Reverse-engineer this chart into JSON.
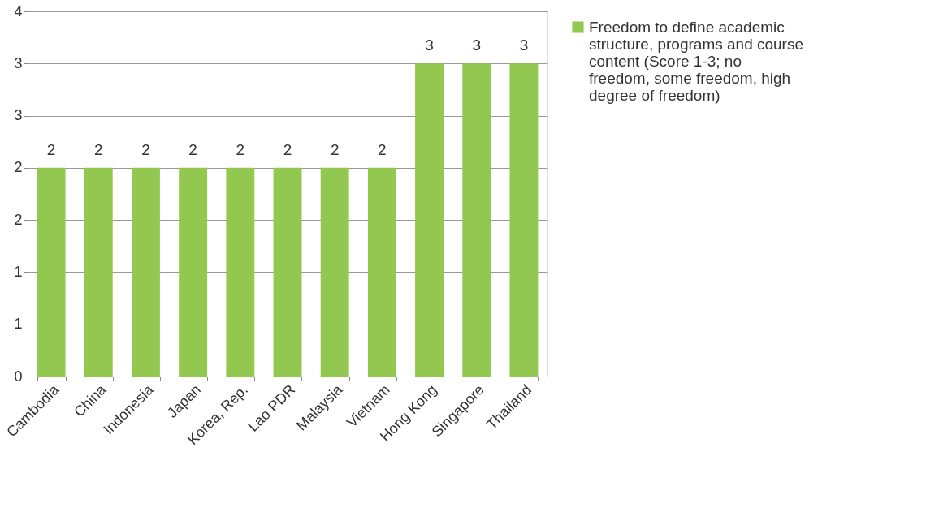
{
  "chart_data": {
    "type": "bar",
    "categories": [
      "Cambodia",
      "China",
      "Indonesia",
      "Japan",
      "Korea, Rep.",
      "Lao PDR",
      "Malaysia",
      "Vietnam",
      "Hong Kong",
      "Singapore",
      "Thailand"
    ],
    "series": [
      {
        "name": "Freedom to define academic structure, programs and course content (Score 1-3; no freedom, some freedom, high degree of freedom)",
        "color": "#92c84f",
        "values": [
          2,
          2,
          2,
          2,
          2,
          2,
          2,
          2,
          3,
          3,
          3
        ]
      }
    ],
    "ylim": [
      0,
      3.5
    ],
    "yticks": [
      0,
      {
        "value": 0.5,
        "label": "1"
      },
      1,
      {
        "value": 1.5,
        "label": "2"
      },
      2,
      {
        "value": 2.5,
        "label": "3"
      },
      3,
      {
        "value": 3.5,
        "label": "4"
      }
    ],
    "grid": "y",
    "legend": "right",
    "data_labels": true
  }
}
